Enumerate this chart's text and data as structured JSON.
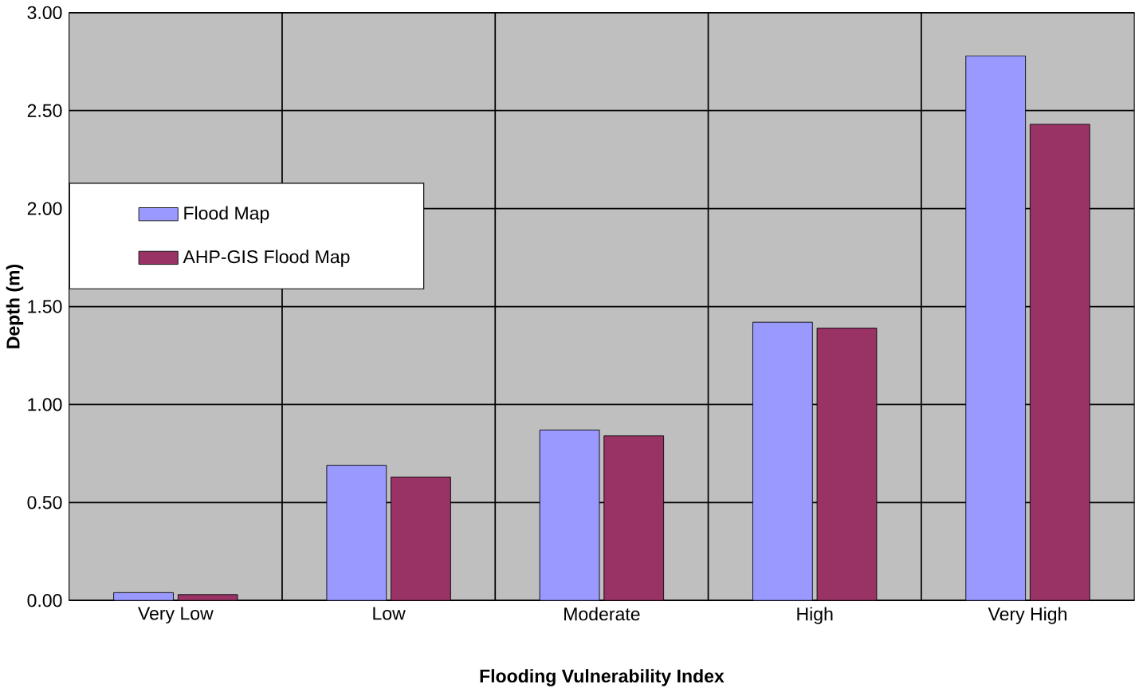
{
  "chart_data": {
    "type": "bar",
    "xlabel": "Flooding Vulnerability Index",
    "ylabel": "Depth (m)",
    "categories": [
      "Very Low",
      "Low",
      "Moderate",
      "High",
      "Very High"
    ],
    "series": [
      {
        "name": "Flood Map",
        "color": "#9999ff",
        "values": [
          0.04,
          0.69,
          0.87,
          1.42,
          2.78
        ]
      },
      {
        "name": "AHP-GIS Flood Map",
        "color": "#993366",
        "values": [
          0.03,
          0.63,
          0.84,
          1.39,
          2.43
        ]
      }
    ],
    "ylim": [
      0,
      3
    ],
    "yticks": [
      {
        "value": 0,
        "label": "0.00"
      },
      {
        "value": 0.5,
        "label": "0.50"
      },
      {
        "value": 1,
        "label": "1.00"
      },
      {
        "value": 1.5,
        "label": "1.50"
      },
      {
        "value": 2,
        "label": "2.00"
      },
      {
        "value": 2.5,
        "label": "2.50"
      },
      {
        "value": 3,
        "label": "3.00"
      }
    ],
    "grid": true,
    "legend": "left"
  }
}
